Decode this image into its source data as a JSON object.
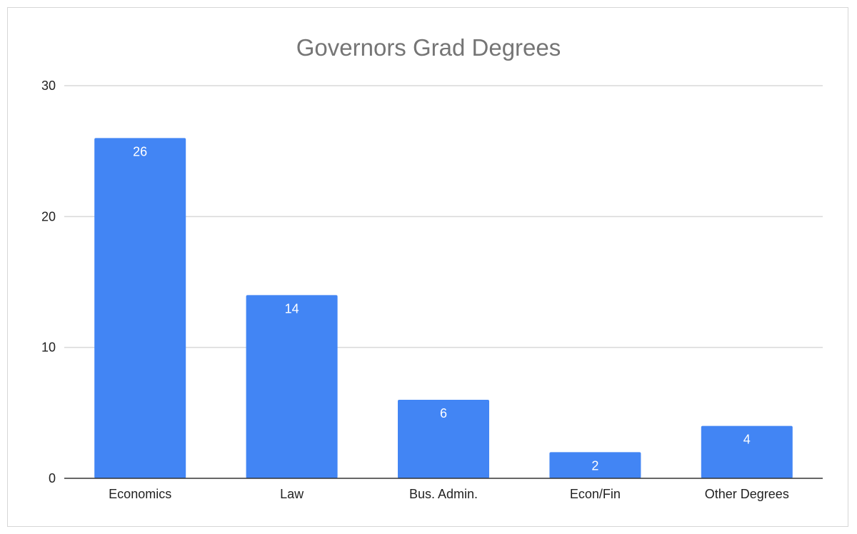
{
  "chart_data": {
    "type": "bar",
    "title": "Governors Grad Degrees",
    "xlabel": "",
    "ylabel": "",
    "categories": [
      "Economics",
      "Law",
      "Bus. Admin.",
      "Econ/Fin",
      "Other Degrees"
    ],
    "values": [
      26,
      14,
      6,
      2,
      4
    ],
    "data_labels": [
      "26",
      "14",
      "6",
      "2",
      "4"
    ],
    "ylim": [
      0,
      30
    ],
    "yticks": [
      0,
      10,
      20,
      30
    ],
    "ytick_labels": [
      "0",
      "10",
      "20",
      "30"
    ],
    "grid": true,
    "legend": "none",
    "colors": {
      "bar": "#4285f4",
      "gridline": "#d9d9d9",
      "axis": "#333333",
      "title": "#757575",
      "text": "#222222",
      "data_label": "#ffffff"
    }
  }
}
